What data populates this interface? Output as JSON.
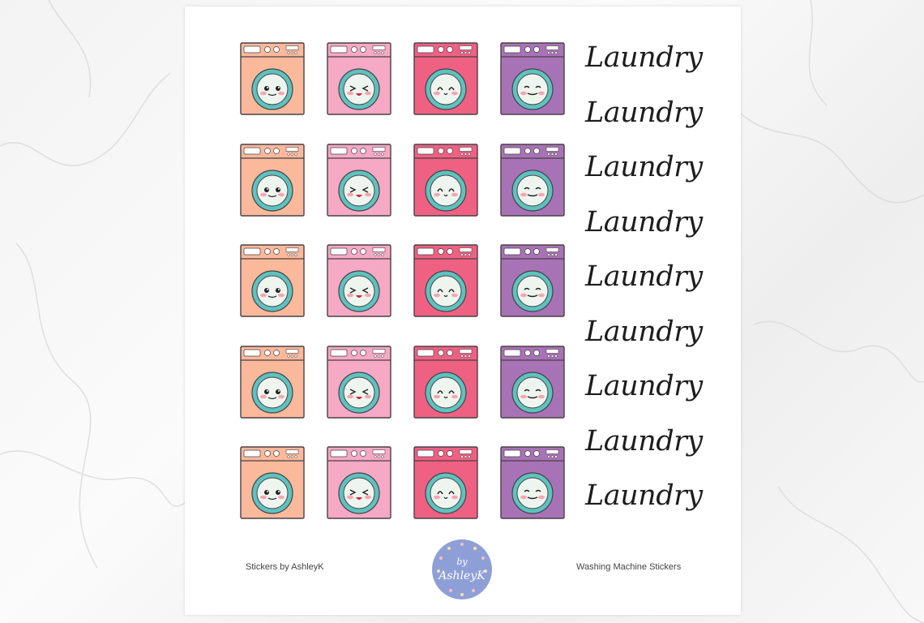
{
  "sheet": {
    "machine_colors": [
      "#fbb99c",
      "#f6a9c4",
      "#ef6183",
      "#a873b6"
    ],
    "drum_color": "#5cc3bf",
    "drum_inner_color": "#eef5ee",
    "outline_color": "#4a4045",
    "rows": 5,
    "faces": [
      "smile-open-eyes",
      "laughing-squint",
      "happy-closed-eyes",
      "content-smile"
    ],
    "labels": [
      "Laundry",
      "Laundry",
      "Laundry",
      "Laundry",
      "Laundry",
      "Laundry",
      "Laundry",
      "Laundry",
      "Laundry"
    ]
  },
  "footer": {
    "left_text": "Stickers by AshleyK",
    "right_text": "Washing Machine Stickers",
    "logo_text": "by AshleyK",
    "logo_color": "#8e9fd8"
  }
}
